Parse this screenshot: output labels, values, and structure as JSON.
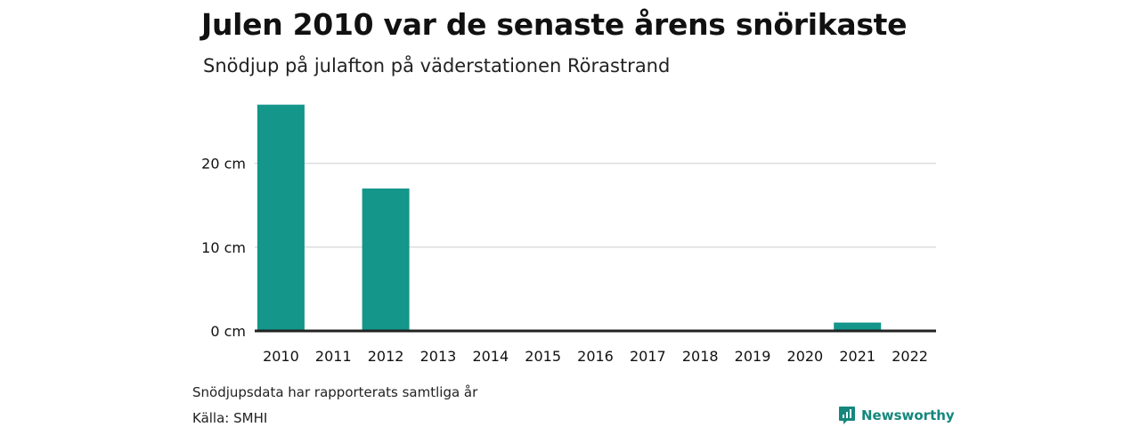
{
  "chart_data": {
    "type": "bar",
    "title": "Julen 2010 var de senaste årens snörikaste",
    "subtitle": "Snödjup på julafton på väderstationen Rörastrand",
    "categories": [
      "2010",
      "2011",
      "2012",
      "2013",
      "2014",
      "2015",
      "2016",
      "2017",
      "2018",
      "2019",
      "2020",
      "2021",
      "2022"
    ],
    "values": [
      27,
      0,
      17,
      0,
      0,
      0,
      0,
      0,
      0,
      0,
      0,
      1,
      0
    ],
    "y_ticks": [
      0,
      10,
      20
    ],
    "y_tick_labels": [
      "0 cm",
      "10 cm",
      "20 cm"
    ],
    "ylim": [
      0,
      29
    ],
    "xlabel": "",
    "ylabel": "",
    "grid": true,
    "colors": {
      "bar": "#14968a",
      "grid": "#dddddd",
      "axis": "#222222"
    }
  },
  "footer": {
    "note": "Snödjupsdata har rapporterats samtliga år",
    "source": "Källa: SMHI",
    "brand": "Newsworthy",
    "brand_icon": "newsworthy-logo-icon"
  }
}
